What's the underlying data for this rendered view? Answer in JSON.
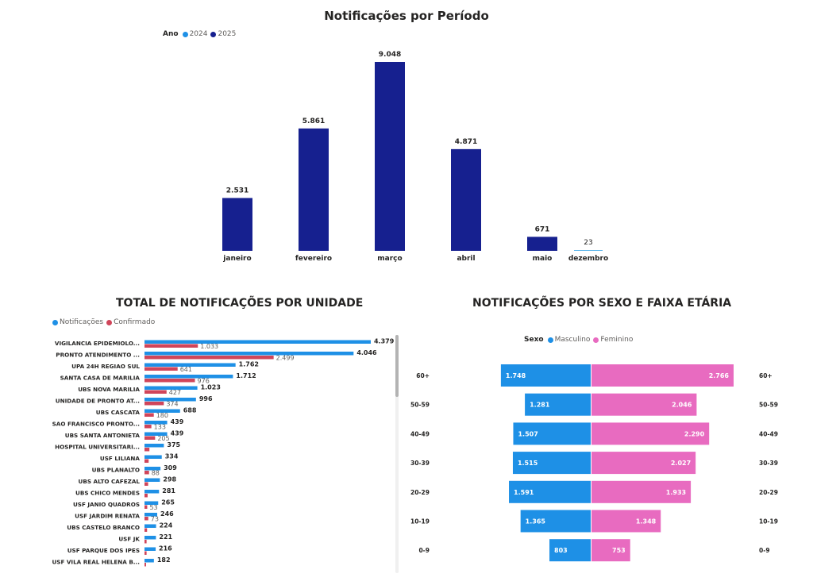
{
  "colors": {
    "navy": "#16208f",
    "blue": "#1e90e6",
    "red": "#d0455a",
    "pink": "#e86bc0",
    "lightblue": "#5ab4ea"
  },
  "period": {
    "title": "Notificações por Período",
    "legend": {
      "title": "Ano",
      "items": [
        "2024",
        "2025"
      ]
    }
  },
  "unit": {
    "title": "TOTAL DE NOTIFICAÇÕES POR UNIDADE",
    "legend": [
      "Notificações",
      "Confirmado"
    ]
  },
  "sex": {
    "title": "NOTIFICAÇÕES POR SEXO E FAIXA ETÁRIA",
    "legend": {
      "title": "Sexo",
      "items": [
        "Masculino",
        "Feminino"
      ]
    }
  },
  "chart_data": [
    {
      "type": "bar",
      "title": "Notificações por Período",
      "legend": "top-left",
      "categories": [
        "janeiro",
        "fevereiro",
        "março",
        "abril",
        "maio",
        "dezembro"
      ],
      "series": [
        {
          "name": "2024",
          "values": [
            null,
            null,
            null,
            null,
            null,
            23
          ],
          "labels": [
            "",
            "",
            "",
            "",
            "",
            "23"
          ]
        },
        {
          "name": "2025",
          "values": [
            2531,
            5861,
            9048,
            4871,
            671,
            null
          ],
          "labels": [
            "2.531",
            "5.861",
            "9.048",
            "4.871",
            "671",
            ""
          ]
        }
      ],
      "ylim": [
        0,
        9048
      ]
    },
    {
      "type": "bar",
      "orientation": "horizontal",
      "title": "TOTAL DE NOTIFICAÇÕES POR UNIDADE",
      "legend": "top-left",
      "categories": [
        "VIGILANCIA EPIDEMIOLO...",
        "PRONTO ATENDIMENTO ...",
        "UPA 24H REGIAO SUL",
        "SANTA CASA DE MARILIA",
        "UBS NOVA MARILIA",
        "UNIDADE DE PRONTO AT...",
        "UBS CASCATA",
        "SAO FRANCISCO PRONTO...",
        "UBS SANTA ANTONIETA",
        "HOSPITAL UNIVERSITARI...",
        "USF LILIANA",
        "UBS PLANALTO",
        "UBS ALTO CAFEZAL",
        "UBS CHICO MENDES",
        "USF JANIO QUADROS",
        "USF JARDIM RENATA",
        "UBS CASTELO BRANCO",
        "USF JK",
        "USF PARQUE DOS IPES",
        "USF VILA REAL HELENA B..."
      ],
      "series": [
        {
          "name": "Notificações",
          "values": [
            4379,
            4046,
            1762,
            1712,
            1023,
            996,
            688,
            439,
            439,
            375,
            334,
            309,
            298,
            281,
            265,
            246,
            224,
            221,
            216,
            182
          ],
          "labels": [
            "4.379",
            "4.046",
            "1.762",
            "1.712",
            "1.023",
            "996",
            "688",
            "439",
            "439",
            "375",
            "334",
            "309",
            "298",
            "281",
            "265",
            "246",
            "224",
            "221",
            "216",
            "182"
          ]
        },
        {
          "name": "Confirmado",
          "values": [
            1033,
            2499,
            641,
            976,
            427,
            374,
            180,
            133,
            205,
            95,
            80,
            88,
            70,
            60,
            53,
            73,
            50,
            40,
            40,
            30
          ],
          "labels": [
            "1.033",
            "2.499",
            "641",
            "976",
            "427",
            "374",
            "180",
            "133",
            "205",
            "",
            "",
            "88",
            "",
            "",
            "53",
            "73",
            "",
            "",
            "",
            ""
          ]
        }
      ]
    },
    {
      "type": "bar",
      "orientation": "horizontal",
      "variant": "population-pyramid",
      "title": "NOTIFICAÇÕES POR SEXO E FAIXA ETÁRIA",
      "legend": "top-left",
      "categories": [
        "60+",
        "50-59",
        "40-49",
        "30-39",
        "20-29",
        "10-19",
        "0-9"
      ],
      "series": [
        {
          "name": "Masculino",
          "values": [
            1748,
            1281,
            1507,
            1515,
            1591,
            1365,
            803
          ],
          "labels": [
            "1.748",
            "1.281",
            "1.507",
            "1.515",
            "1.591",
            "1.365",
            "803"
          ]
        },
        {
          "name": "Feminino",
          "values": [
            2766,
            2046,
            2290,
            2027,
            1933,
            1348,
            753
          ],
          "labels": [
            "2.766",
            "2.046",
            "2.290",
            "2.027",
            "1.933",
            "1.348",
            "753"
          ]
        }
      ]
    }
  ]
}
